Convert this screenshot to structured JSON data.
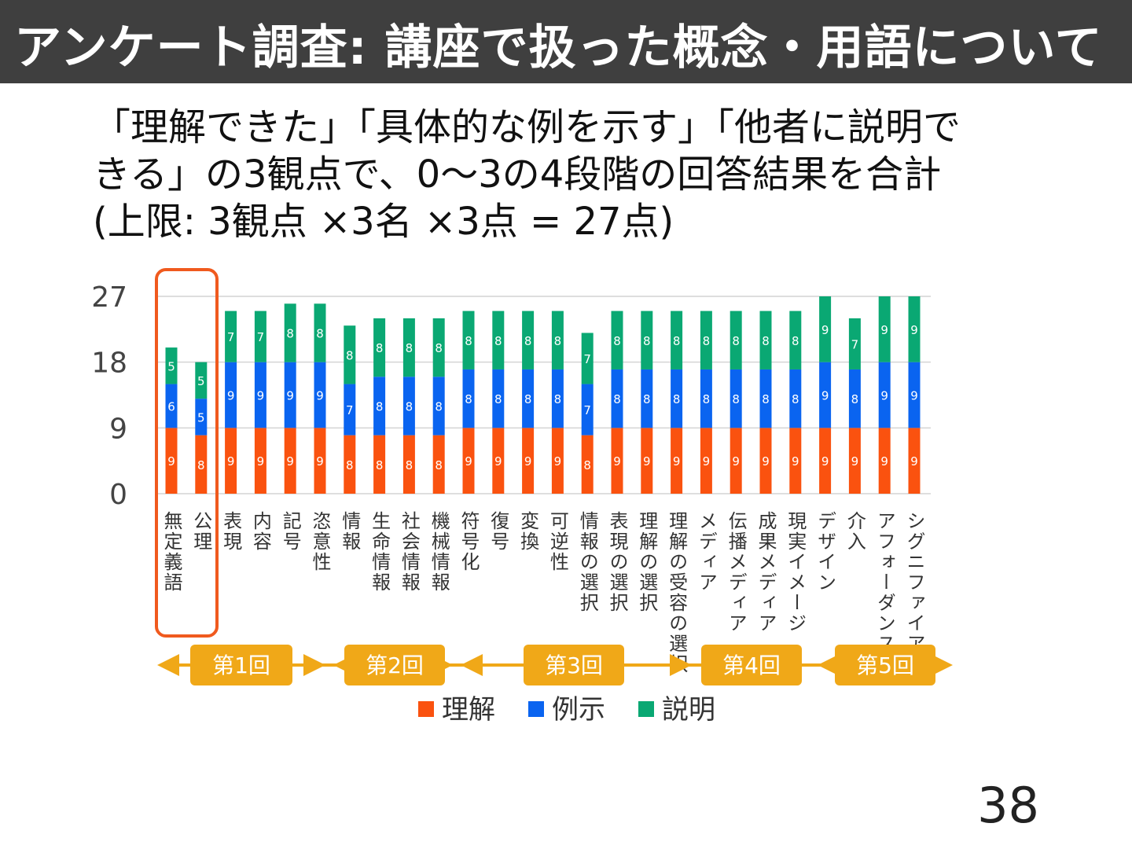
{
  "slide": {
    "title": "アンケート調査: 講座で扱った概念・用語について",
    "subtitle_lines": [
      "「理解できた」「具体的な例を示す」「他者に説明で",
      "きる」の3観点で、0〜3の4段階の回答結果を合計",
      "(上限: 3観点 ×3名 ×3点 = 27点)"
    ],
    "page_number": "38"
  },
  "chart_data": {
    "type": "bar",
    "stacked": true,
    "ylim": [
      0,
      27
    ],
    "yticks": [
      "0",
      "9",
      "18",
      "27"
    ],
    "grid": true,
    "categories": [
      "無定義語",
      "公理",
      "表現",
      "内容",
      "記号",
      "恣意性",
      "情報",
      "生命情報",
      "社会情報",
      "機械情報",
      "符号化",
      "復号",
      "変換",
      "可逆性",
      "情報の選択",
      "表現の選択",
      "理解の選択",
      "理解の受容の選択",
      "メディア",
      "伝播メディア",
      "成果メディア",
      "現実イメージ",
      "デザイン",
      "介入",
      "アフォーダンス",
      "シグニファイア"
    ],
    "series": [
      {
        "name": "理解",
        "color": "#fa520f",
        "values": [
          9,
          8,
          9,
          9,
          9,
          9,
          8,
          8,
          8,
          8,
          9,
          9,
          9,
          9,
          8,
          9,
          9,
          9,
          9,
          9,
          9,
          9,
          9,
          9,
          9,
          9
        ]
      },
      {
        "name": "例示",
        "color": "#0a64f0",
        "values": [
          6,
          5,
          9,
          9,
          9,
          9,
          7,
          8,
          8,
          8,
          8,
          8,
          8,
          8,
          7,
          8,
          8,
          8,
          8,
          8,
          8,
          8,
          9,
          8,
          9,
          9
        ]
      },
      {
        "name": "説明",
        "color": "#0aa873",
        "values": [
          5,
          5,
          7,
          7,
          8,
          8,
          8,
          8,
          8,
          8,
          8,
          8,
          8,
          8,
          7,
          8,
          8,
          8,
          8,
          8,
          8,
          8,
          9,
          7,
          9,
          9
        ]
      }
    ],
    "highlight": {
      "categories": [
        "無定義語",
        "公理"
      ],
      "color": "#f05a1e"
    },
    "sessions": [
      {
        "label": "第1回",
        "color": "#f0a818"
      },
      {
        "label": "第2回",
        "color": "#f0a818"
      },
      {
        "label": "第3回",
        "color": "#f0a818"
      },
      {
        "label": "第4回",
        "color": "#f0a818"
      },
      {
        "label": "第5回",
        "color": "#f0a818"
      }
    ],
    "legend_position": "bottom"
  }
}
